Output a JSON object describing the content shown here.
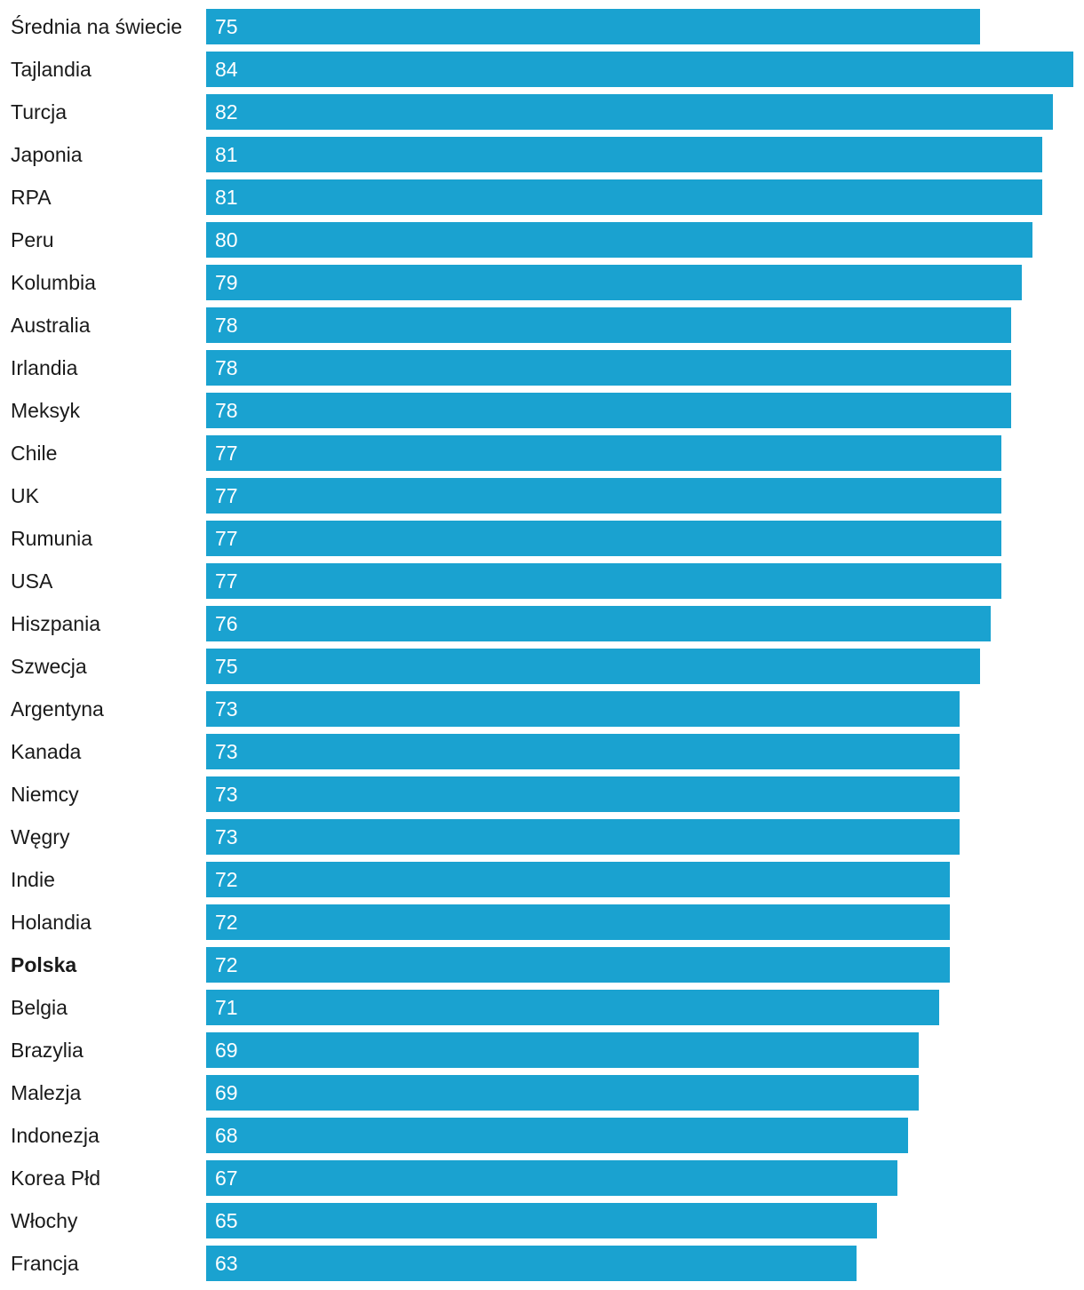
{
  "chart_data": {
    "type": "bar",
    "orientation": "horizontal",
    "bar_color": "#1aa2d0",
    "value_label_color": "#ffffff",
    "highlight_category": "Polska",
    "categories": [
      "Średnia na świecie",
      "Tajlandia",
      "Turcja",
      "Japonia",
      "RPA",
      "Peru",
      "Kolumbia",
      "Australia",
      "Irlandia",
      "Meksyk",
      "Chile",
      "UK",
      "Rumunia",
      "USA",
      "Hiszpania",
      "Szwecja",
      "Argentyna",
      "Kanada",
      "Niemcy",
      "Węgry",
      "Indie",
      "Holandia",
      "Polska",
      "Belgia",
      "Brazylia",
      "Malezja",
      "Indonezja",
      "Korea Płd",
      "Włochy",
      "Francja"
    ],
    "values": [
      75,
      84,
      82,
      81,
      81,
      80,
      79,
      78,
      78,
      78,
      77,
      77,
      77,
      77,
      76,
      75,
      73,
      73,
      73,
      73,
      72,
      72,
      72,
      71,
      69,
      69,
      68,
      67,
      65,
      63
    ],
    "xlim": [
      0,
      84
    ],
    "title": "",
    "xlabel": "",
    "ylabel": "",
    "grid": false,
    "legend": "none"
  }
}
